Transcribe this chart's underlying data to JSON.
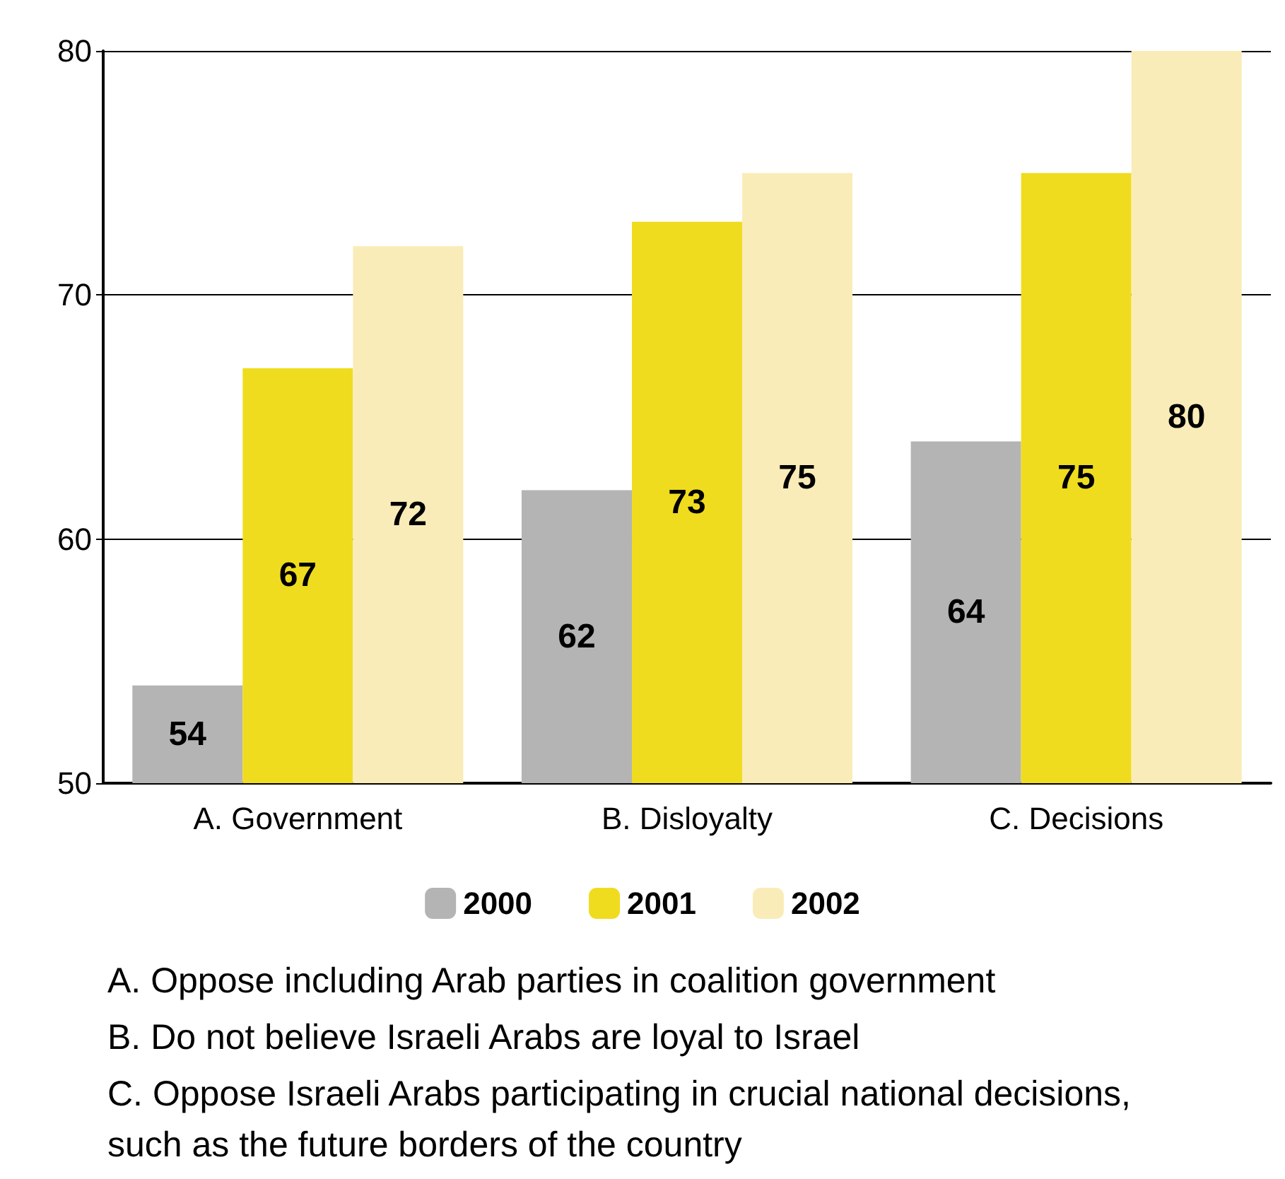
{
  "chart_data": {
    "type": "bar",
    "categories": [
      "A. Government",
      "B. Disloyalty",
      "C. Decisions"
    ],
    "series": [
      {
        "name": "2000",
        "color": "#b4b4b4",
        "values": [
          54,
          62,
          64
        ]
      },
      {
        "name": "2001",
        "color": "#f0dc1e",
        "values": [
          67,
          73,
          75
        ]
      },
      {
        "name": "2002",
        "color": "#faecb8",
        "values": [
          72,
          75,
          80
        ]
      }
    ],
    "ylim": [
      50,
      80
    ],
    "yticks": [
      50,
      60,
      70,
      80
    ],
    "grid": "y",
    "legend": "bottom",
    "data_labels": true,
    "annotations": [
      "A. Oppose including Arab parties in coalition government",
      "B. Do not believe Israeli Arabs are loyal to Israel",
      "C. Oppose Israeli Arabs participating in crucial national decisions, such as the future borders of the country"
    ]
  }
}
